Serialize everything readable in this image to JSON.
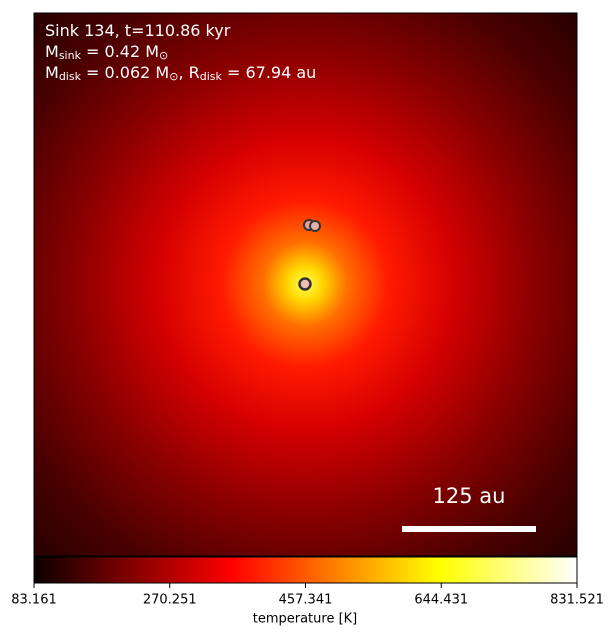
{
  "chart_data": {
    "type": "heatmap",
    "colormap": "hot",
    "annotation_lines": [
      [
        "Sink 134, t=110.86 kyr"
      ],
      [
        "M",
        "sink",
        " = 0.42 M",
        "⊙"
      ],
      [
        "M",
        "disk",
        " = 0.062 M",
        "⊙",
        ", R",
        "disk",
        " = 67.94 au"
      ]
    ],
    "scale_bar_label": "125 au",
    "colorbar": {
      "label": "temperature [K]",
      "clim": [
        83.161,
        831.521
      ],
      "ticks": [
        83.161,
        270.251,
        457.341,
        644.431,
        831.521
      ]
    }
  }
}
